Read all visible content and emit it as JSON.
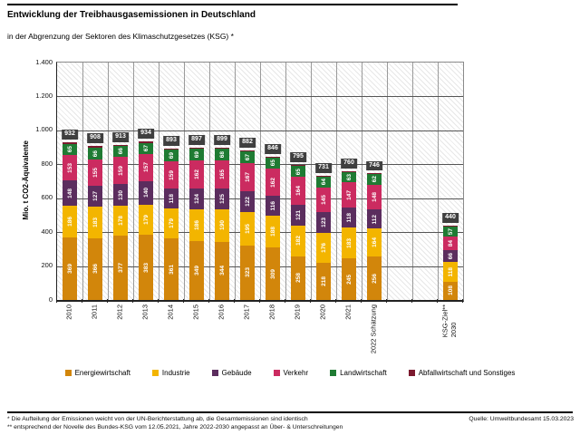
{
  "header": {
    "title": "Entwicklung der Treibhausgasemissionen in Deutschland",
    "subtitle": "in der Abgrenzung der Sektoren des Klimaschutzgesetzes (KSG) *"
  },
  "footer": {
    "footnote1": "* Die Aufteilung der Emissionen weicht von der UN-Berichterstattung ab, die Gesamtemissionen sind identisch",
    "footnote2": "** entsprechend der Novelle des Bundes-KSG vom 12.05.2021, Jahre 2022-2030 angepasst an Über- & Unterschreitungen",
    "source": "Quelle: Umweltbundesamt  15.03.2023"
  },
  "chart_data": {
    "type": "bar",
    "stacked": true,
    "title": "Entwicklung der Treibhausgasemissionen in Deutschland",
    "subtitle": "in der Abgrenzung der Sektoren des Klimaschutzgesetzes (KSG) *",
    "ylabel": "Mio. t CO2-Äquivalente",
    "ylim": [
      0,
      1400
    ],
    "ytick_step": 200,
    "ytick_labels": [
      "0",
      "200",
      "400",
      "600",
      "800",
      "1.000",
      "1.200",
      "1.400"
    ],
    "grid": true,
    "legend_position": "bottom",
    "total_label_bg": "#3f3f3f",
    "categories": [
      "2010",
      "2011",
      "2012",
      "2013",
      "2014",
      "2015",
      "2016",
      "2017",
      "2018",
      "2019",
      "2020",
      "2021",
      "2022 Schätzung",
      "KSG-Ziel**\n2030"
    ],
    "slots": [
      0,
      1,
      2,
      3,
      4,
      5,
      6,
      7,
      8,
      9,
      10,
      11,
      12,
      15
    ],
    "num_slots": 16,
    "totals": [
      932,
      908,
      913,
      934,
      893,
      897,
      899,
      882,
      846,
      795,
      731,
      760,
      746,
      440
    ],
    "series": [
      {
        "name": "Energiewirtschaft",
        "color": "#d2860b",
        "labeled": true,
        "values": [
          369,
          366,
          377,
          383,
          361,
          349,
          344,
          323,
          309,
          258,
          218,
          245,
          256,
          108
        ]
      },
      {
        "name": "Industrie",
        "color": "#f3b500",
        "labeled": true,
        "values": [
          186,
          183,
          178,
          179,
          179,
          186,
          190,
          195,
          188,
          182,
          176,
          183,
          164,
          118
        ]
      },
      {
        "name": "Gebäude",
        "color": "#5b2d5e",
        "labeled": true,
        "values": [
          148,
          127,
          130,
          140,
          118,
          124,
          125,
          122,
          116,
          121,
          123,
          118,
          112,
          66
        ]
      },
      {
        "name": "Verkehr",
        "color": "#cb2b60",
        "labeled": true,
        "values": [
          153,
          155,
          159,
          157,
          159,
          162,
          165,
          167,
          162,
          164,
          145,
          147,
          148,
          84
        ]
      },
      {
        "name": "Landwirtschaft",
        "color": "#1f7b33",
        "labeled": true,
        "values": [
          65,
          66,
          66,
          67,
          69,
          69,
          68,
          67,
          65,
          65,
          64,
          63,
          62,
          57
        ]
      },
      {
        "name": "Abfallwirtschaft und Sonstiges",
        "color": "#7c192e",
        "labeled": false,
        "estimated": true,
        "values": [
          11,
          11,
          3,
          8,
          7,
          7,
          7,
          8,
          6,
          5,
          5,
          4,
          4,
          7
        ]
      }
    ]
  }
}
